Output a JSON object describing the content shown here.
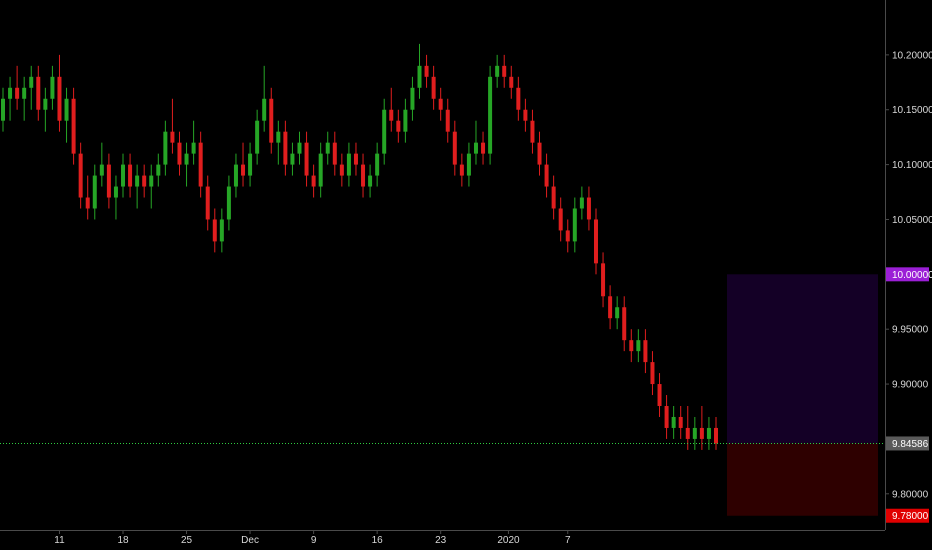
{
  "chart_data": {
    "type": "candlestick",
    "title": "",
    "xlabel": "",
    "ylabel": "",
    "x_ticks": [
      "11",
      "18",
      "25",
      "Dec",
      "9",
      "16",
      "23",
      "2020",
      "7"
    ],
    "y_ticks": [
      "10.20000",
      "10.15000",
      "10.10000",
      "10.05000",
      "9.95000",
      "9.90000",
      "9.80000"
    ],
    "ylim": [
      9.767,
      10.25
    ],
    "grid": false,
    "colors": {
      "up": "#26a626",
      "down": "#e01e1e",
      "last_line": "#2ecc40",
      "target_zone": "#140026",
      "stop_zone": "#2e0000",
      "target_tag": "#9b1fd6",
      "stop_tag": "#e00000",
      "last_tag": "#5a5a5a"
    },
    "price_levels": {
      "target": {
        "label": "10.00000",
        "value": 10.0
      },
      "last": {
        "label": "9.84586",
        "value": 9.84586
      },
      "stop": {
        "label": "9.78000",
        "value": 9.78
      }
    },
    "position_box": {
      "entry": 9.84586,
      "target": 10.0,
      "stop": 9.78
    },
    "series": [
      {
        "values": [
          [
            10.14,
            10.17,
            10.13,
            10.16
          ],
          [
            10.16,
            10.18,
            10.14,
            10.17
          ],
          [
            10.17,
            10.19,
            10.15,
            10.16
          ],
          [
            10.16,
            10.18,
            10.14,
            10.17
          ],
          [
            10.17,
            10.19,
            10.15,
            10.18
          ],
          [
            10.18,
            10.19,
            10.14,
            10.15
          ],
          [
            10.15,
            10.17,
            10.13,
            10.16
          ],
          [
            10.16,
            10.19,
            10.15,
            10.18
          ],
          [
            10.18,
            10.2,
            10.13,
            10.14
          ],
          [
            10.14,
            10.17,
            10.12,
            10.16
          ],
          [
            10.16,
            10.17,
            10.1,
            10.11
          ],
          [
            10.11,
            10.12,
            10.06,
            10.07
          ],
          [
            10.07,
            10.09,
            10.05,
            10.06
          ],
          [
            10.06,
            10.1,
            10.05,
            10.09
          ],
          [
            10.09,
            10.12,
            10.08,
            10.1
          ],
          [
            10.1,
            10.11,
            10.06,
            10.07
          ],
          [
            10.07,
            10.09,
            10.05,
            10.08
          ],
          [
            10.08,
            10.11,
            10.07,
            10.1
          ],
          [
            10.1,
            10.11,
            10.07,
            10.08
          ],
          [
            10.08,
            10.1,
            10.06,
            10.09
          ],
          [
            10.09,
            10.1,
            10.07,
            10.08
          ],
          [
            10.08,
            10.1,
            10.06,
            10.09
          ],
          [
            10.09,
            10.11,
            10.08,
            10.1
          ],
          [
            10.1,
            10.14,
            10.09,
            10.13
          ],
          [
            10.13,
            10.16,
            10.11,
            10.12
          ],
          [
            10.12,
            10.13,
            10.09,
            10.1
          ],
          [
            10.1,
            10.12,
            10.08,
            10.11
          ],
          [
            10.11,
            10.14,
            10.1,
            10.12
          ],
          [
            10.12,
            10.13,
            10.07,
            10.08
          ],
          [
            10.08,
            10.09,
            10.04,
            10.05
          ],
          [
            10.05,
            10.06,
            10.02,
            10.03
          ],
          [
            10.03,
            10.06,
            10.02,
            10.05
          ],
          [
            10.05,
            10.09,
            10.04,
            10.08
          ],
          [
            10.08,
            10.11,
            10.07,
            10.1
          ],
          [
            10.1,
            10.12,
            10.08,
            10.09
          ],
          [
            10.09,
            10.12,
            10.08,
            10.11
          ],
          [
            10.11,
            10.15,
            10.1,
            10.14
          ],
          [
            10.14,
            10.19,
            10.13,
            10.16
          ],
          [
            10.16,
            10.17,
            10.11,
            10.12
          ],
          [
            10.12,
            10.14,
            10.1,
            10.13
          ],
          [
            10.13,
            10.14,
            10.09,
            10.1
          ],
          [
            10.1,
            10.12,
            10.09,
            10.11
          ],
          [
            10.11,
            10.13,
            10.1,
            10.12
          ],
          [
            10.12,
            10.13,
            10.08,
            10.09
          ],
          [
            10.09,
            10.1,
            10.07,
            10.08
          ],
          [
            10.08,
            10.12,
            10.07,
            10.11
          ],
          [
            10.11,
            10.13,
            10.1,
            10.12
          ],
          [
            10.12,
            10.13,
            10.09,
            10.1
          ],
          [
            10.1,
            10.11,
            10.08,
            10.09
          ],
          [
            10.09,
            10.12,
            10.08,
            10.11
          ],
          [
            10.11,
            10.12,
            10.09,
            10.1
          ],
          [
            10.1,
            10.11,
            10.07,
            10.08
          ],
          [
            10.08,
            10.1,
            10.07,
            10.09
          ],
          [
            10.09,
            10.12,
            10.08,
            10.11
          ],
          [
            10.11,
            10.16,
            10.1,
            10.15
          ],
          [
            10.15,
            10.17,
            10.13,
            10.14
          ],
          [
            10.14,
            10.15,
            10.12,
            10.13
          ],
          [
            10.13,
            10.16,
            10.12,
            10.15
          ],
          [
            10.15,
            10.18,
            10.14,
            10.17
          ],
          [
            10.17,
            10.21,
            10.16,
            10.19
          ],
          [
            10.19,
            10.2,
            10.17,
            10.18
          ],
          [
            10.18,
            10.19,
            10.15,
            10.16
          ],
          [
            10.16,
            10.17,
            10.14,
            10.15
          ],
          [
            10.15,
            10.16,
            10.12,
            10.13
          ],
          [
            10.13,
            10.14,
            10.09,
            10.1
          ],
          [
            10.1,
            10.11,
            10.08,
            10.09
          ],
          [
            10.09,
            10.12,
            10.08,
            10.11
          ],
          [
            10.11,
            10.14,
            10.1,
            10.12
          ],
          [
            10.12,
            10.13,
            10.1,
            10.11
          ],
          [
            10.11,
            10.19,
            10.1,
            10.18
          ],
          [
            10.18,
            10.2,
            10.17,
            10.19
          ],
          [
            10.19,
            10.2,
            10.17,
            10.18
          ],
          [
            10.18,
            10.19,
            10.16,
            10.17
          ],
          [
            10.17,
            10.18,
            10.14,
            10.15
          ],
          [
            10.15,
            10.16,
            10.13,
            10.14
          ],
          [
            10.14,
            10.15,
            10.11,
            10.12
          ],
          [
            10.12,
            10.13,
            10.09,
            10.1
          ],
          [
            10.1,
            10.11,
            10.07,
            10.08
          ],
          [
            10.08,
            10.09,
            10.05,
            10.06
          ],
          [
            10.06,
            10.07,
            10.03,
            10.04
          ],
          [
            10.04,
            10.05,
            10.02,
            10.03
          ],
          [
            10.03,
            10.07,
            10.02,
            10.06
          ],
          [
            10.06,
            10.08,
            10.05,
            10.07
          ],
          [
            10.07,
            10.08,
            10.04,
            10.05
          ],
          [
            10.05,
            10.06,
            10.0,
            10.01
          ],
          [
            10.01,
            10.02,
            9.97,
            9.98
          ],
          [
            9.98,
            9.99,
            9.95,
            9.96
          ],
          [
            9.96,
            9.98,
            9.95,
            9.97
          ],
          [
            9.97,
            9.98,
            9.93,
            9.94
          ],
          [
            9.94,
            9.95,
            9.92,
            9.93
          ],
          [
            9.93,
            9.95,
            9.92,
            9.94
          ],
          [
            9.94,
            9.95,
            9.91,
            9.92
          ],
          [
            9.92,
            9.93,
            9.89,
            9.9
          ],
          [
            9.9,
            9.91,
            9.87,
            9.88
          ],
          [
            9.88,
            9.89,
            9.85,
            9.86
          ],
          [
            9.86,
            9.88,
            9.85,
            9.87
          ],
          [
            9.87,
            9.88,
            9.85,
            9.86
          ],
          [
            9.86,
            9.88,
            9.84,
            9.85
          ],
          [
            9.85,
            9.87,
            9.84,
            9.86
          ],
          [
            9.86,
            9.88,
            9.84,
            9.85
          ],
          [
            9.85,
            9.87,
            9.84,
            9.86
          ],
          [
            9.86,
            9.87,
            9.84,
            9.84586
          ]
        ]
      }
    ]
  }
}
